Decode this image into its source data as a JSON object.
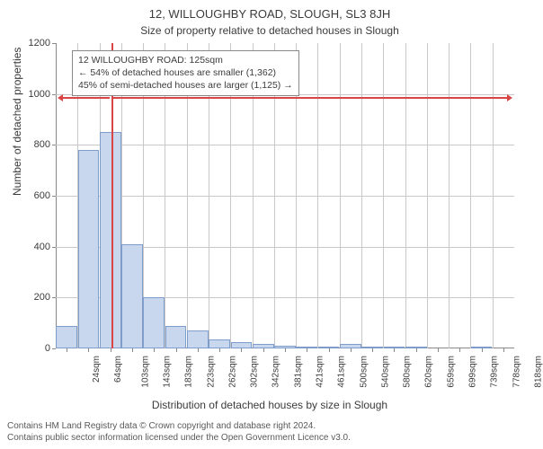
{
  "title_main": "12, WILLOUGHBY ROAD, SLOUGH, SL3 8JH",
  "title_sub": "Size of property relative to detached houses in Slough",
  "ylabel": "Number of detached properties",
  "xlabel": "Distribution of detached houses by size in Slough",
  "chart": {
    "type": "histogram",
    "ylim": [
      0,
      1200
    ],
    "ytick_step": 200,
    "background_color": "#ffffff",
    "grid_color": "#c8c8c8",
    "axis_color": "#888888",
    "bar_fill": "#c8d7ed",
    "bar_border": "#7e9dcb",
    "marker_color": "#d94545",
    "x_categories": [
      "24sqm",
      "64sqm",
      "103sqm",
      "143sqm",
      "183sqm",
      "223sqm",
      "262sqm",
      "302sqm",
      "342sqm",
      "381sqm",
      "421sqm",
      "461sqm",
      "500sqm",
      "540sqm",
      "580sqm",
      "620sqm",
      "659sqm",
      "699sqm",
      "739sqm",
      "778sqm",
      "818sqm"
    ],
    "bar_values": [
      90,
      780,
      850,
      410,
      200,
      90,
      70,
      35,
      25,
      18,
      12,
      8,
      2,
      18,
      8,
      2,
      2,
      0,
      0,
      2,
      0
    ],
    "marker_index": 2.55,
    "title_fontsize": 13,
    "sub_fontsize": 12,
    "label_fontsize": 12,
    "tick_fontsize": 11
  },
  "annotation": {
    "line1": "12 WILLOUGHBY ROAD: 125sqm",
    "line2": "← 54% of detached houses are smaller (1,362)",
    "line3": "45% of semi-detached houses are larger (1,125) →"
  },
  "footer": {
    "line1": "Contains HM Land Registry data © Crown copyright and database right 2024.",
    "line2": "Contains public sector information licensed under the Open Government Licence v3.0."
  }
}
